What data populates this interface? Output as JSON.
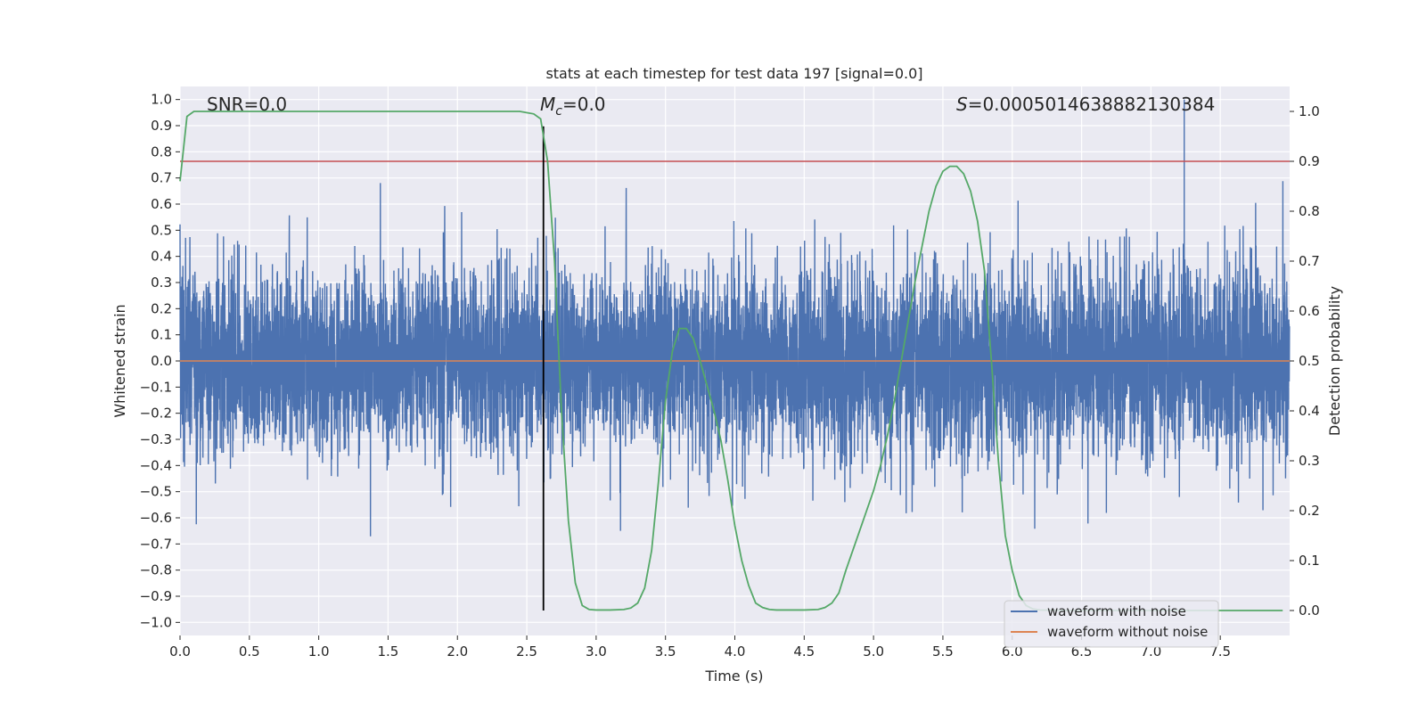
{
  "chart_data": {
    "type": "line",
    "title": "stats at each timestep for test data 197 [signal=0.0]",
    "xlabel": "Time (s)",
    "ylabel": "Whitened strain",
    "y2label": "Detection probability",
    "xlim": [
      0.0,
      8.0
    ],
    "ylim": [
      -1.05,
      1.05
    ],
    "y2lim": [
      -0.05,
      1.05
    ],
    "x_ticks": [
      "0.0",
      "0.5",
      "1.0",
      "1.5",
      "2.0",
      "2.5",
      "3.0",
      "3.5",
      "4.0",
      "4.5",
      "5.0",
      "5.5",
      "6.0",
      "6.5",
      "7.0",
      "7.5"
    ],
    "y_ticks": [
      "1.0",
      "0.9",
      "0.8",
      "0.7",
      "0.6",
      "0.5",
      "0.4",
      "0.3",
      "0.2",
      "0.1",
      "0.0",
      "−0.1",
      "−0.2",
      "−0.3",
      "−0.4",
      "−0.5",
      "−0.6",
      "−0.7",
      "−0.8",
      "−0.9",
      "−1.0"
    ],
    "y2_ticks": [
      "1.0",
      "0.9",
      "0.8",
      "0.7",
      "0.6",
      "0.5",
      "0.4",
      "0.3",
      "0.2",
      "0.1",
      "0.0"
    ],
    "annotations": {
      "snr": "SNR=0.0",
      "mc_symbol": "M",
      "mc_sub": "c",
      "mc_value": "=0.0",
      "s_symbol": "S",
      "s_value": "=0.0005014638882130384"
    },
    "threshold_y2": 0.9,
    "marker_time": 2.62,
    "series": [
      {
        "name": "waveform with noise",
        "color": "#4c72b0",
        "kind": "noise",
        "envelope": [
          -0.64,
          1.0
        ],
        "n_samples": 8192
      },
      {
        "name": "waveform without noise",
        "color": "#dd8452",
        "kind": "constant",
        "value": 0.0
      },
      {
        "name": "detection probability",
        "color": "#55a868",
        "axis": "y2",
        "x": [
          0.0,
          0.05,
          0.1,
          0.2,
          0.3,
          0.5,
          1.0,
          1.5,
          2.0,
          2.3,
          2.45,
          2.55,
          2.6,
          2.65,
          2.7,
          2.75,
          2.8,
          2.85,
          2.9,
          2.95,
          3.0,
          3.05,
          3.1,
          3.2,
          3.25,
          3.3,
          3.35,
          3.4,
          3.45,
          3.5,
          3.55,
          3.6,
          3.65,
          3.7,
          3.75,
          3.8,
          3.85,
          3.9,
          3.95,
          4.0,
          4.05,
          4.1,
          4.15,
          4.2,
          4.25,
          4.3,
          4.5,
          4.6,
          4.65,
          4.7,
          4.75,
          4.8,
          4.85,
          4.9,
          4.95,
          5.0,
          5.05,
          5.1,
          5.15,
          5.2,
          5.25,
          5.3,
          5.35,
          5.4,
          5.45,
          5.5,
          5.55,
          5.6,
          5.65,
          5.7,
          5.75,
          5.8,
          5.85,
          5.9,
          5.95,
          6.0,
          6.05,
          6.1,
          6.15,
          6.2,
          6.4,
          7.0,
          7.5,
          7.95
        ],
        "values": [
          0.86,
          0.99,
          1.0,
          1.0,
          1.0,
          1.0,
          1.0,
          1.0,
          1.0,
          1.0,
          1.0,
          0.995,
          0.985,
          0.9,
          0.7,
          0.4,
          0.18,
          0.055,
          0.01,
          0.002,
          0.001,
          0.001,
          0.001,
          0.002,
          0.005,
          0.015,
          0.045,
          0.12,
          0.26,
          0.42,
          0.52,
          0.565,
          0.565,
          0.545,
          0.5,
          0.45,
          0.4,
          0.34,
          0.26,
          0.17,
          0.1,
          0.05,
          0.015,
          0.006,
          0.002,
          0.001,
          0.001,
          0.002,
          0.006,
          0.015,
          0.035,
          0.08,
          0.12,
          0.16,
          0.2,
          0.24,
          0.29,
          0.35,
          0.42,
          0.5,
          0.58,
          0.66,
          0.73,
          0.8,
          0.85,
          0.88,
          0.89,
          0.89,
          0.875,
          0.84,
          0.78,
          0.68,
          0.5,
          0.3,
          0.15,
          0.08,
          0.03,
          0.01,
          0.003,
          0.001,
          0.0,
          0.0,
          0.0,
          0.0
        ]
      }
    ],
    "legend": {
      "position": "lower-right",
      "entries": [
        {
          "label": "waveform with noise",
          "color": "#4c72b0"
        },
        {
          "label": "waveform without noise",
          "color": "#dd8452"
        }
      ]
    }
  }
}
